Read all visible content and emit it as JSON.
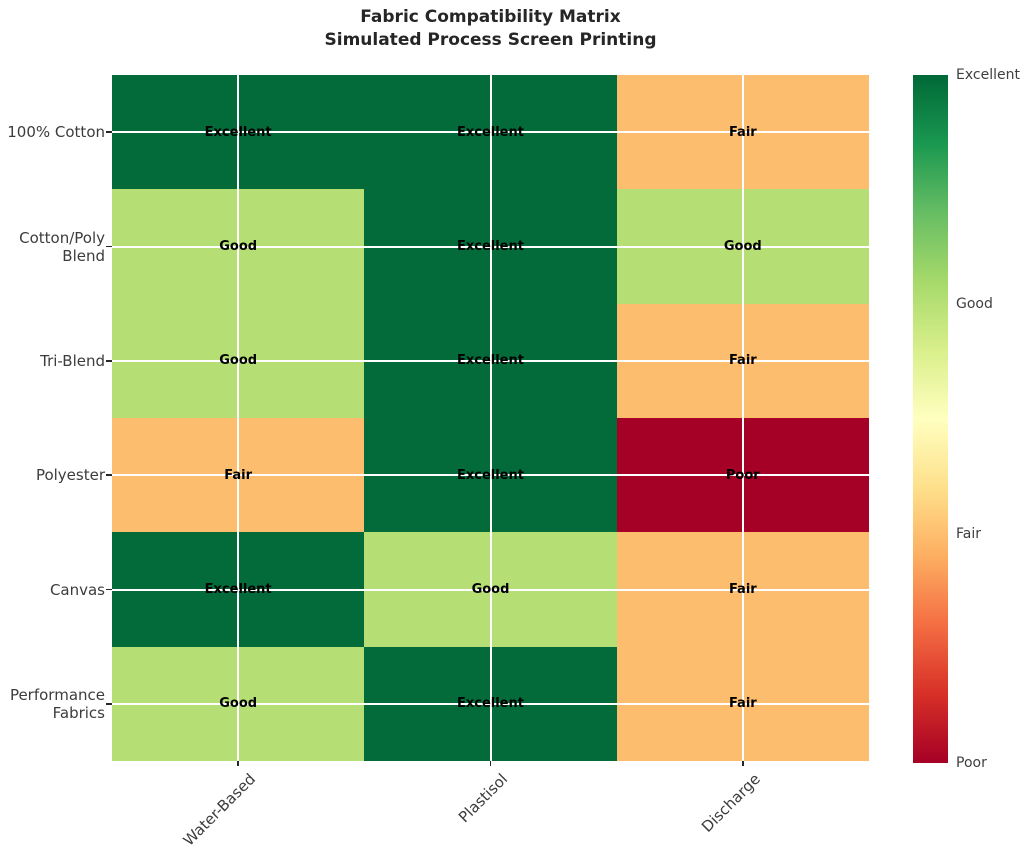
{
  "title": {
    "line1": "Fabric Compatibility Matrix",
    "line2": "Simulated Process Screen Printing"
  },
  "chart_data": {
    "type": "heatmap",
    "title": "Fabric Compatibility Matrix — Simulated Process Screen Printing",
    "columns": [
      "Water-Based",
      "Plastisol",
      "Discharge"
    ],
    "rows": [
      "100% Cotton",
      "Cotton/Poly Blend",
      "Tri-Blend",
      "Polyester",
      "Canvas",
      "Performance Fabrics"
    ],
    "row_display": [
      "100% Cotton",
      "Cotton/Poly\nBlend",
      "Tri-Blend",
      "Polyester",
      "Canvas",
      "Performance\nFabrics"
    ],
    "values": [
      [
        "Excellent",
        "Excellent",
        "Fair"
      ],
      [
        "Good",
        "Excellent",
        "Good"
      ],
      [
        "Good",
        "Excellent",
        "Fair"
      ],
      [
        "Fair",
        "Excellent",
        "Poor"
      ],
      [
        "Excellent",
        "Good",
        "Fair"
      ],
      [
        "Good",
        "Excellent",
        "Fair"
      ]
    ],
    "numeric_scale": {
      "Excellent": 4,
      "Good": 3,
      "Fair": 2,
      "Poor": 1
    },
    "cell_colors": {
      "Excellent": "#036b3a",
      "Good": "#b5de75",
      "Fair": "#fcbd6e",
      "Poor": "#a50026"
    },
    "colormap": {
      "name": "RdYlGn",
      "stops": [
        "#a50026",
        "#d73027",
        "#f46d43",
        "#fdae61",
        "#fee08b",
        "#ffffbf",
        "#d9ef8b",
        "#a6d96a",
        "#66bd63",
        "#1a9850",
        "#006837"
      ]
    },
    "colorbar": {
      "tick_labels": [
        "Excellent",
        "Good",
        "Fair",
        "Poor"
      ],
      "tick_positions": [
        1.0,
        0.6667,
        0.3333,
        0.0
      ]
    },
    "grid": true,
    "legend_position": "right"
  }
}
